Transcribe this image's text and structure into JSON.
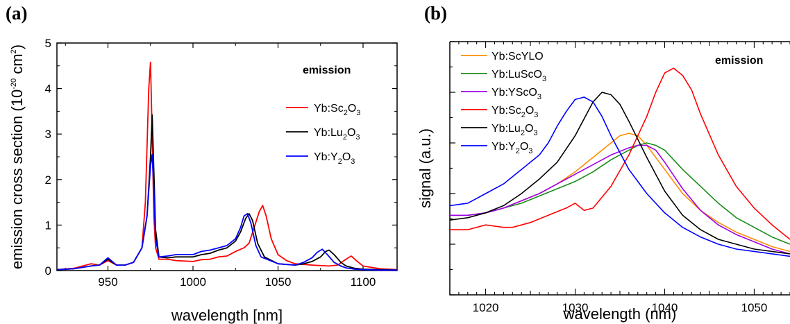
{
  "chart_data": [
    {
      "panel": "(a)",
      "type": "line",
      "xlabel": "wavelength [nm]",
      "ylabel": "emission cross section (10^-20 cm^2)",
      "xlim": [
        920,
        1120
      ],
      "ylim": [
        0,
        5
      ],
      "x_ticks": [
        950,
        1000,
        1050,
        1100
      ],
      "y_ticks": [
        0,
        1,
        2,
        3,
        4,
        5
      ],
      "annotation": "emission",
      "legend_position": "right",
      "series": [
        {
          "name": "Yb:Sc2O3",
          "legend_base": "Yb:Sc",
          "legend_sub1": "2",
          "legend_mid": "O",
          "legend_sub2": "3",
          "color": "#ff0000",
          "x": [
            920,
            930,
            940,
            945,
            950,
            955,
            960,
            965,
            970,
            972,
            974,
            975,
            976,
            977,
            978,
            980,
            985,
            990,
            1000,
            1005,
            1010,
            1015,
            1020,
            1025,
            1030,
            1033,
            1036,
            1039,
            1041,
            1043,
            1046,
            1050,
            1055,
            1060,
            1070,
            1080,
            1085,
            1090,
            1093,
            1096,
            1100,
            1110,
            1120
          ],
          "y": [
            0.02,
            0.05,
            0.15,
            0.12,
            0.22,
            0.12,
            0.12,
            0.18,
            0.5,
            1.5,
            4.0,
            4.58,
            3.0,
            1.2,
            0.5,
            0.25,
            0.25,
            0.22,
            0.2,
            0.24,
            0.25,
            0.3,
            0.32,
            0.42,
            0.5,
            0.6,
            0.95,
            1.3,
            1.43,
            1.2,
            0.7,
            0.35,
            0.22,
            0.15,
            0.12,
            0.1,
            0.12,
            0.25,
            0.32,
            0.22,
            0.1,
            0.04,
            0.02
          ]
        },
        {
          "name": "Yb:Lu2O3",
          "legend_base": "Yb:Lu",
          "legend_sub1": "2",
          "legend_mid": "O",
          "legend_sub2": "3",
          "color": "#000000",
          "x": [
            920,
            930,
            940,
            945,
            950,
            955,
            960,
            965,
            970,
            973,
            975,
            976,
            977,
            978,
            980,
            985,
            990,
            1000,
            1005,
            1010,
            1015,
            1020,
            1025,
            1028,
            1031,
            1033,
            1035,
            1038,
            1042,
            1050,
            1060,
            1065,
            1070,
            1075,
            1078,
            1080,
            1083,
            1087,
            1090,
            1095,
            1100,
            1110,
            1120
          ],
          "y": [
            0.02,
            0.04,
            0.1,
            0.12,
            0.25,
            0.12,
            0.12,
            0.18,
            0.5,
            1.2,
            2.5,
            3.42,
            2.2,
            0.9,
            0.3,
            0.28,
            0.3,
            0.3,
            0.35,
            0.38,
            0.45,
            0.5,
            0.65,
            0.85,
            1.15,
            1.25,
            1.1,
            0.6,
            0.3,
            0.15,
            0.12,
            0.15,
            0.2,
            0.3,
            0.42,
            0.45,
            0.35,
            0.18,
            0.1,
            0.05,
            0.03,
            0.02,
            0.01
          ]
        },
        {
          "name": "Yb:Y2O3",
          "legend_base": "Yb:Y",
          "legend_sub1": "2",
          "legend_mid": "O",
          "legend_sub2": "3",
          "color": "#0000ff",
          "x": [
            920,
            930,
            940,
            945,
            950,
            955,
            960,
            965,
            970,
            973,
            975,
            976,
            977,
            978,
            980,
            985,
            990,
            1000,
            1005,
            1010,
            1015,
            1020,
            1025,
            1028,
            1030,
            1032,
            1034,
            1037,
            1040,
            1050,
            1060,
            1065,
            1070,
            1073,
            1076,
            1079,
            1083,
            1087,
            1090,
            1095,
            1100,
            1110,
            1120
          ],
          "y": [
            0.02,
            0.04,
            0.1,
            0.12,
            0.28,
            0.12,
            0.12,
            0.18,
            0.5,
            1.2,
            2.3,
            2.55,
            1.8,
            0.7,
            0.3,
            0.32,
            0.35,
            0.35,
            0.42,
            0.45,
            0.5,
            0.55,
            0.7,
            0.95,
            1.2,
            1.25,
            1.05,
            0.55,
            0.3,
            0.15,
            0.12,
            0.18,
            0.28,
            0.4,
            0.47,
            0.35,
            0.18,
            0.1,
            0.06,
            0.03,
            0.02,
            0.01,
            0.01
          ]
        }
      ]
    },
    {
      "panel": "(b)",
      "type": "line",
      "xlabel": "wavelength (nm)",
      "ylabel": "signal (a.u.)",
      "xlim": [
        1016,
        1054
      ],
      "ylim": [
        0,
        1.05
      ],
      "x_ticks": [
        1020,
        1030,
        1040,
        1050
      ],
      "annotation": "emission",
      "legend_position": "top-left",
      "series": [
        {
          "name": "Yb:ScYLO",
          "legend_base": "Yb:ScYLO",
          "color": "#ff8c00",
          "x": [
            1016,
            1018,
            1020,
            1022,
            1024,
            1026,
            1028,
            1030,
            1032,
            1034,
            1035,
            1036,
            1037,
            1038,
            1040,
            1042,
            1044,
            1046,
            1048,
            1050,
            1052,
            1054
          ],
          "y": [
            0.33,
            0.33,
            0.34,
            0.36,
            0.39,
            0.42,
            0.46,
            0.51,
            0.57,
            0.63,
            0.66,
            0.67,
            0.66,
            0.62,
            0.52,
            0.42,
            0.35,
            0.3,
            0.26,
            0.23,
            0.2,
            0.18
          ]
        },
        {
          "name": "Yb:LuScO3",
          "legend_base": "Yb:LuScO",
          "legend_sub2": "3",
          "color": "#1a8c1a",
          "x": [
            1016,
            1018,
            1020,
            1022,
            1024,
            1026,
            1028,
            1030,
            1032,
            1034,
            1036,
            1037,
            1038,
            1039,
            1040,
            1042,
            1044,
            1046,
            1048,
            1050,
            1052,
            1054
          ],
          "y": [
            0.33,
            0.33,
            0.34,
            0.36,
            0.38,
            0.41,
            0.44,
            0.47,
            0.51,
            0.56,
            0.6,
            0.62,
            0.63,
            0.62,
            0.6,
            0.52,
            0.45,
            0.38,
            0.32,
            0.28,
            0.24,
            0.21
          ]
        },
        {
          "name": "Yb:YScO3",
          "legend_base": "Yb:YScO",
          "legend_sub2": "3",
          "color": "#a000e6",
          "x": [
            1016,
            1018,
            1020,
            1022,
            1024,
            1026,
            1028,
            1030,
            1032,
            1034,
            1036,
            1037,
            1038,
            1039,
            1040,
            1042,
            1044,
            1046,
            1048,
            1050,
            1052,
            1054
          ],
          "y": [
            0.33,
            0.33,
            0.34,
            0.36,
            0.39,
            0.42,
            0.46,
            0.5,
            0.54,
            0.58,
            0.61,
            0.62,
            0.62,
            0.6,
            0.55,
            0.44,
            0.35,
            0.29,
            0.25,
            0.22,
            0.19,
            0.17
          ]
        },
        {
          "name": "Yb:Sc2O3",
          "legend_base": "Yb:Sc",
          "legend_sub1": "2",
          "legend_mid": "O",
          "legend_sub2": "3",
          "color": "#ff0000",
          "x": [
            1016,
            1018,
            1020,
            1022,
            1023,
            1025,
            1027,
            1029,
            1030,
            1031,
            1032,
            1034,
            1036,
            1038,
            1039,
            1040,
            1041,
            1042,
            1043,
            1044,
            1046,
            1048,
            1050,
            1052,
            1054
          ],
          "y": [
            0.27,
            0.27,
            0.29,
            0.28,
            0.28,
            0.3,
            0.33,
            0.36,
            0.38,
            0.35,
            0.36,
            0.45,
            0.58,
            0.74,
            0.84,
            0.92,
            0.94,
            0.91,
            0.85,
            0.75,
            0.58,
            0.45,
            0.36,
            0.29,
            0.23
          ]
        },
        {
          "name": "Yb:Lu2O3",
          "legend_base": "Yb:Lu",
          "legend_sub1": "2",
          "legend_mid": "O",
          "legend_sub2": "3",
          "color": "#000000",
          "x": [
            1016,
            1018,
            1020,
            1022,
            1024,
            1026,
            1028,
            1030,
            1031,
            1032,
            1033,
            1034,
            1035,
            1036,
            1038,
            1040,
            1042,
            1044,
            1046,
            1048,
            1050,
            1052,
            1054
          ],
          "y": [
            0.31,
            0.32,
            0.34,
            0.37,
            0.42,
            0.48,
            0.55,
            0.66,
            0.73,
            0.8,
            0.84,
            0.83,
            0.79,
            0.72,
            0.57,
            0.43,
            0.33,
            0.27,
            0.23,
            0.21,
            0.19,
            0.18,
            0.17
          ]
        },
        {
          "name": "Yb:Y2O3",
          "legend_base": "Yb:Y",
          "legend_sub1": "2",
          "legend_mid": "O",
          "legend_sub2": "3",
          "color": "#0000ff",
          "x": [
            1016,
            1018,
            1020,
            1022,
            1024,
            1026,
            1027,
            1028,
            1029,
            1030,
            1031,
            1032,
            1033,
            1034,
            1036,
            1038,
            1040,
            1042,
            1044,
            1046,
            1048,
            1050,
            1052,
            1054
          ],
          "y": [
            0.37,
            0.38,
            0.42,
            0.46,
            0.52,
            0.58,
            0.63,
            0.7,
            0.76,
            0.81,
            0.82,
            0.8,
            0.74,
            0.66,
            0.52,
            0.42,
            0.34,
            0.28,
            0.24,
            0.21,
            0.19,
            0.18,
            0.17,
            0.16
          ]
        }
      ]
    }
  ]
}
